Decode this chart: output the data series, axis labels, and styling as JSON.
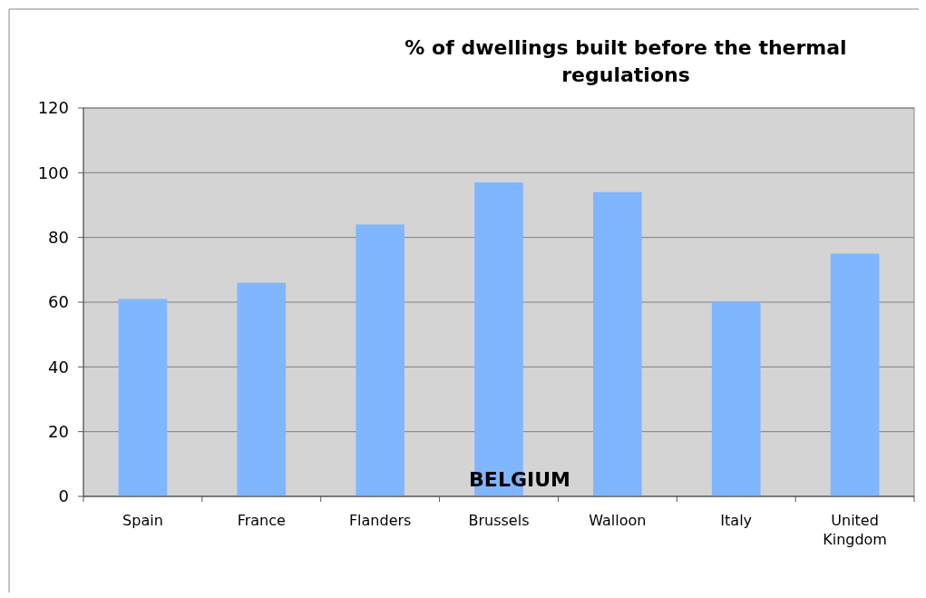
{
  "chart_data": {
    "type": "bar",
    "title": "% of dwellings built before the thermal regulations",
    "categories": [
      "Spain",
      "France",
      "Flanders",
      "Brussels",
      "Walloon",
      "Italy",
      "United Kingdom"
    ],
    "values": [
      61,
      66,
      84,
      97,
      94,
      60,
      75
    ],
    "color": "#80b6ff",
    "ylim": [
      0,
      120
    ],
    "yticks": [
      0,
      20,
      40,
      60,
      80,
      100,
      120
    ],
    "grid": "y",
    "annotations": [
      "BELGIUM"
    ]
  }
}
